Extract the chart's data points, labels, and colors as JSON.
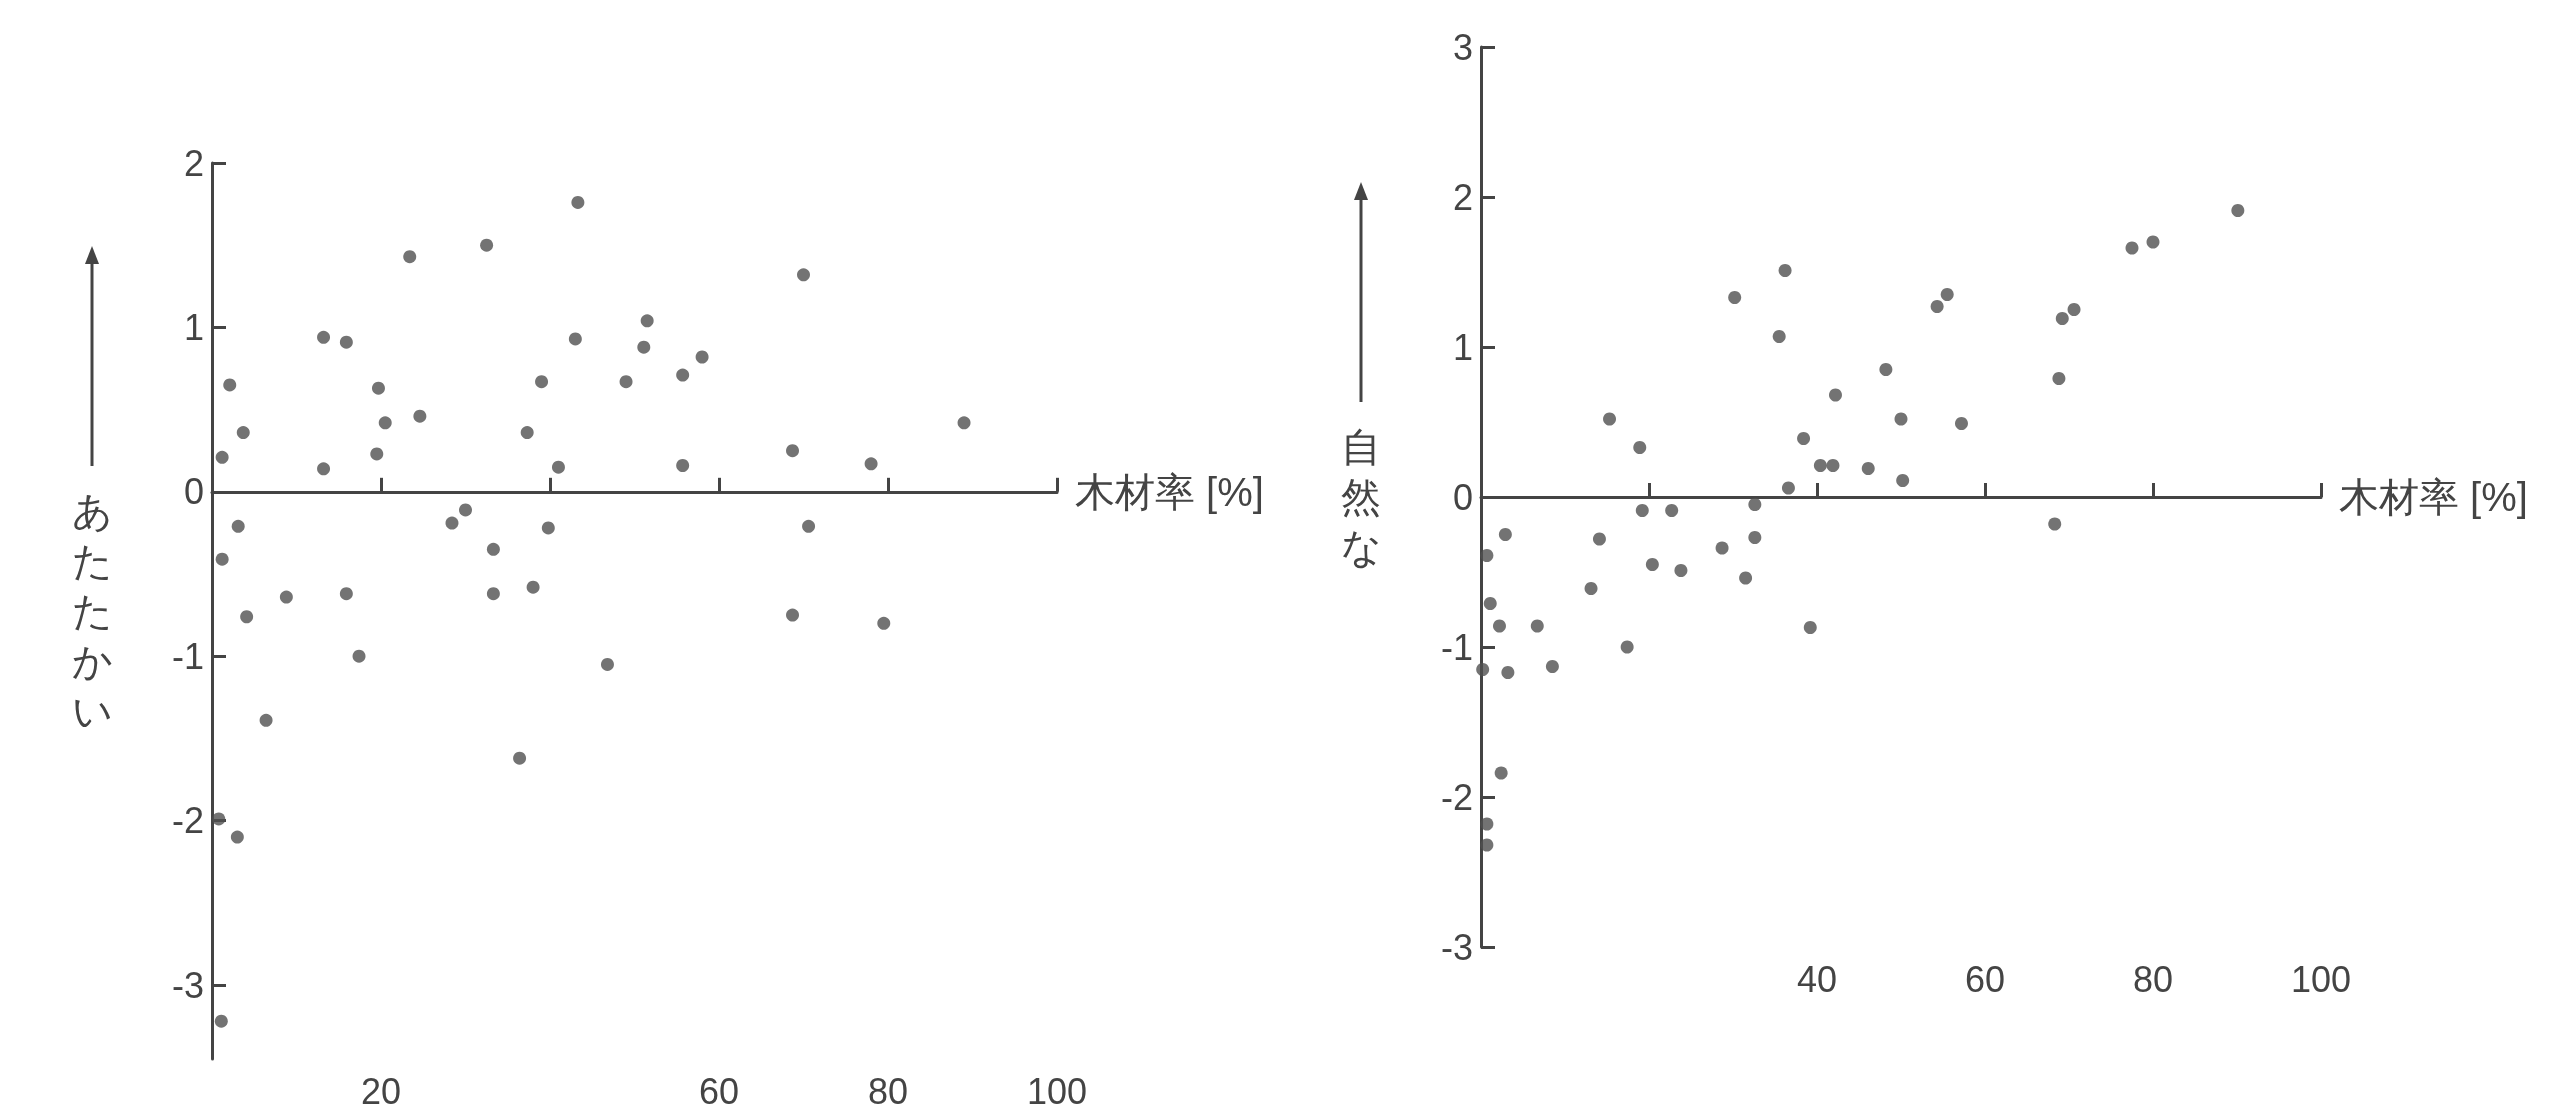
{
  "chart_data": [
    {
      "type": "scatter",
      "xlabel": "木材率 [%]",
      "ylabel": "あたたかい",
      "xlim": [
        0,
        100
      ],
      "xticks": [
        20,
        {
          "value": 40,
          "label": null
        },
        60,
        80,
        100
      ],
      "ylim": [
        -3.45,
        2
      ],
      "yticks": [
        -3,
        -2,
        -1,
        0,
        1,
        2
      ],
      "marker": "circle",
      "series": [
        {
          "color": "#505050",
          "x": [
            1.2,
            2.1,
            3.7,
            1.2,
            3.1,
            4.1,
            6.4,
            0.8,
            3.0,
            1.1,
            8.8,
            13.2,
            13.2,
            15.9,
            15.9,
            17.4,
            19.7,
            19.5,
            20.5,
            23.4,
            24.6,
            28.4,
            30,
            32.5,
            33.3,
            33.3,
            36.4,
            37.3,
            38,
            39,
            39.8,
            41,
            43,
            43.3,
            46.8,
            49,
            51.1,
            51.5,
            55.7,
            55.7,
            58,
            68.7,
            70,
            70.6,
            68.7,
            78,
            79.5,
            89
          ],
          "values": [
            0.21,
            0.65,
            0.36,
            -0.41,
            -0.21,
            -0.76,
            -1.39,
            -1.99,
            -2.1,
            -3.22,
            -0.64,
            0.14,
            0.94,
            0.91,
            -0.62,
            -1.0,
            0.63,
            0.23,
            0.42,
            1.43,
            0.46,
            -0.19,
            -0.11,
            1.5,
            -0.35,
            -0.62,
            -1.62,
            0.36,
            -0.58,
            0.67,
            -0.22,
            0.15,
            0.93,
            1.76,
            -1.05,
            0.67,
            0.88,
            1.04,
            0.71,
            0.16,
            0.82,
            0.25,
            1.32,
            -0.21,
            -0.75,
            0.17,
            -0.8,
            0.42
          ]
        }
      ]
    },
    {
      "type": "scatter",
      "xlabel": "木材率 [%]",
      "ylabel": "自然な",
      "xlim": [
        0,
        100
      ],
      "xticks": [
        {
          "value": 20,
          "label": null
        },
        40,
        60,
        80,
        100
      ],
      "ylim": [
        -3,
        3
      ],
      "yticks": [
        -3,
        -2,
        -1,
        0,
        1,
        2,
        3
      ],
      "marker": "circle",
      "series": [
        {
          "color": "#505050",
          "x": [
            30.2,
            36.2,
            35.5,
            15.3,
            18.9,
            48.2,
            42.2,
            50,
            38.4,
            40.4,
            41.9,
            46.1,
            50.2,
            36.6,
            2.9,
            0.7,
            1.1,
            2.2,
            0.2,
            3.2,
            6.7,
            8.5,
            2.4,
            0.7,
            0.7,
            13.1,
            14.1,
            17.4,
            19.2,
            22.7,
            20.4,
            23.8,
            28.7,
            31.5,
            32.6,
            32.6,
            39.2,
            54.3,
            55.5,
            57.2,
            68.8,
            69.2,
            70.6,
            68.3,
            77.5,
            80,
            90.1
          ],
          "values": [
            1.33,
            1.51,
            1.07,
            0.52,
            0.33,
            0.85,
            0.68,
            0.52,
            0.39,
            0.21,
            0.21,
            0.19,
            0.11,
            0.06,
            -0.25,
            -0.39,
            -0.71,
            -0.86,
            -1.15,
            -1.17,
            -0.86,
            -1.13,
            -1.84,
            -2.18,
            -2.32,
            -0.61,
            -0.28,
            -1.0,
            -0.09,
            -0.09,
            -0.45,
            -0.49,
            -0.34,
            -0.54,
            -0.05,
            -0.27,
            -0.87,
            1.27,
            1.35,
            0.49,
            0.79,
            1.19,
            1.25,
            -0.18,
            1.66,
            1.7,
            1.91
          ]
        }
      ]
    }
  ]
}
